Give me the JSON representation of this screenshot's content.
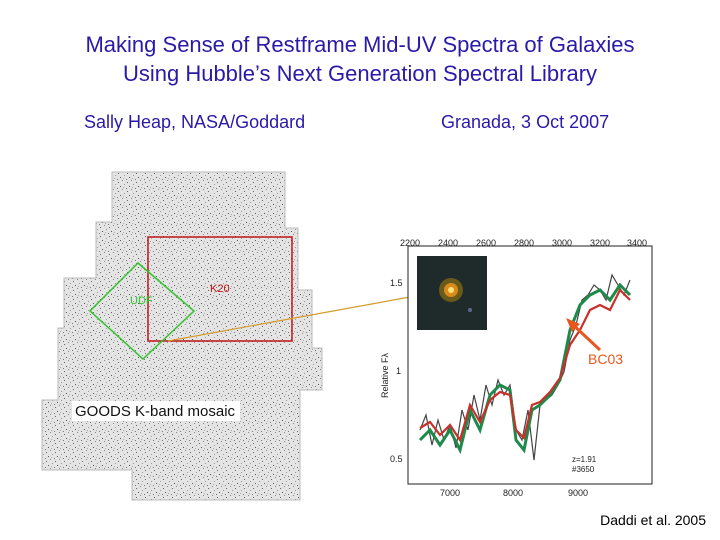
{
  "title": {
    "line1": "Making Sense of Restframe Mid-UV Spectra of Galaxies",
    "line2": "Using Hubble’s Next Generation Spectral Library"
  },
  "author": "Sally Heap,  NASA/Goddard",
  "venue": "Granada, 3 Oct 2007",
  "mosaic": {
    "caption": "GOODS K-band mosaic",
    "box_labels": {
      "k20": "K20",
      "udf": "UDF"
    }
  },
  "spectrum": {
    "top_ticks": [
      "2200",
      "2400",
      "2600",
      "2800",
      "3000",
      "3200",
      "3400"
    ],
    "bottom_ticks": [
      "7000",
      "8000",
      "9000"
    ],
    "y_ticks": [
      "1.5",
      "1",
      "0.5"
    ],
    "y_label": "Relative Fλ",
    "annotation": "z=1.91\n#3650",
    "model_label": "BC03"
  },
  "credit": "Daddi et al. 2005",
  "colors": {
    "title": "#2a1aa8",
    "k20_box": "#c0141a",
    "udf_box": "#33c22e",
    "model_green": "#1e8a4a",
    "model_red": "#c8302a",
    "arrow": "#e8581e"
  }
}
